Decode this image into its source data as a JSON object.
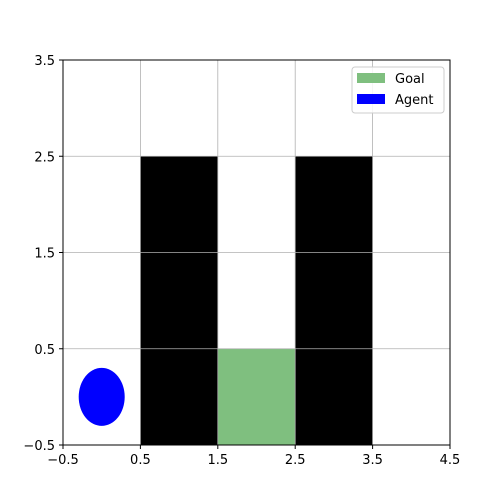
{
  "chart_data": {
    "type": "gridworld",
    "xlim": [
      -0.5,
      4.5
    ],
    "ylim": [
      -0.5,
      3.5
    ],
    "xticks": [
      -0.5,
      0.5,
      1.5,
      2.5,
      3.5,
      4.5
    ],
    "yticks": [
      -0.5,
      0.5,
      1.5,
      2.5,
      3.5
    ],
    "xtick_labels": [
      "−0.5",
      "0.5",
      "1.5",
      "2.5",
      "3.5",
      "4.5"
    ],
    "ytick_labels": [
      "−0.5",
      "0.5",
      "1.5",
      "2.5",
      "3.5"
    ],
    "grid": true,
    "walls": [
      {
        "x": 1,
        "y": 0
      },
      {
        "x": 1,
        "y": 1
      },
      {
        "x": 1,
        "y": 2
      },
      {
        "x": 3,
        "y": 0
      },
      {
        "x": 3,
        "y": 1
      },
      {
        "x": 3,
        "y": 2
      }
    ],
    "goal": {
      "x": 2,
      "y": 0
    },
    "agent": {
      "x": 0,
      "y": 0
    },
    "legend": {
      "placement": "upper right",
      "entries": [
        {
          "label": "Goal",
          "color": "#7fbf7f"
        },
        {
          "label": "Agent",
          "color": "#0000ff"
        }
      ]
    },
    "colors": {
      "wall": "#000000",
      "goal": "#7fbf7f",
      "agent": "#0000ff",
      "grid": "#b0b0b0"
    }
  }
}
